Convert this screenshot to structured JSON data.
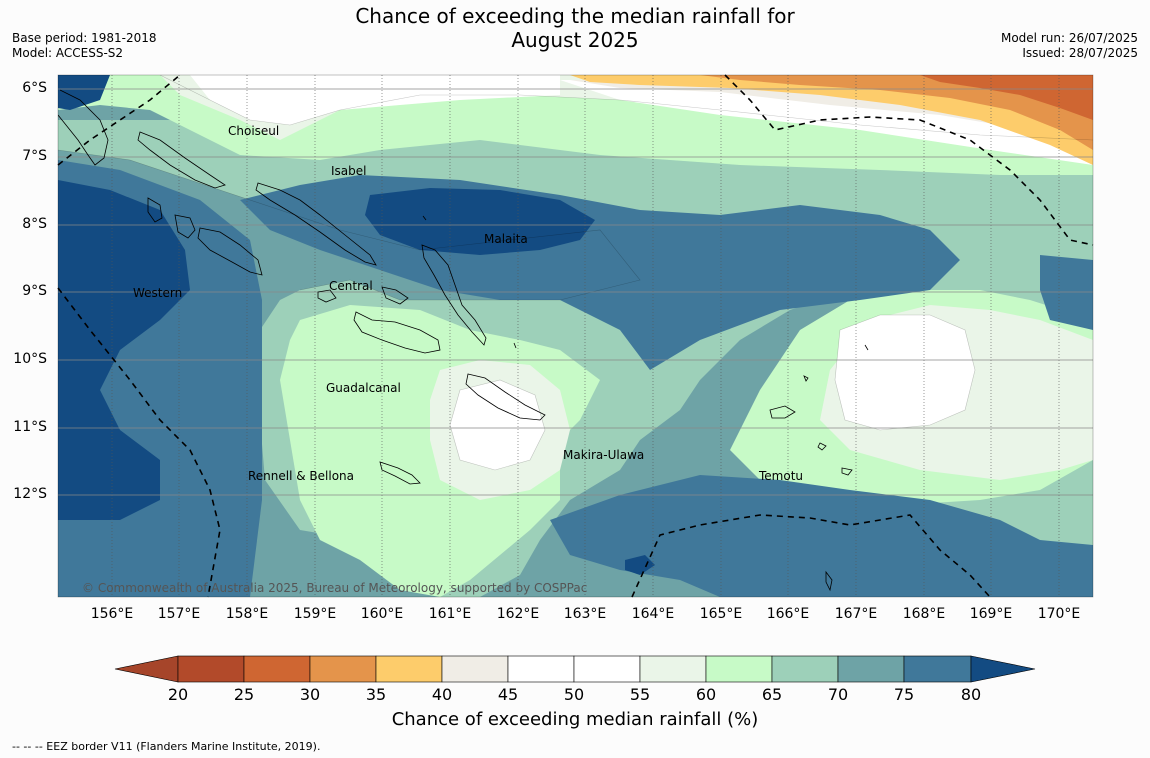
{
  "title": {
    "line1": "Chance of exceeding the median rainfall for",
    "line2": "August 2025"
  },
  "meta": {
    "base_period": "Base period: 1981-2018",
    "model": "Model: ACCESS-S2",
    "model_run": "Model run: 26/07/2025",
    "issued": "Issued: 28/07/2025"
  },
  "map": {
    "latitudes": [
      "6°S",
      "7°S",
      "8°S",
      "9°S",
      "10°S",
      "11°S",
      "12°S"
    ],
    "longitudes": [
      "156°E",
      "157°E",
      "158°E",
      "159°E",
      "160°E",
      "161°E",
      "162°E",
      "163°E",
      "164°E",
      "165°E",
      "166°E",
      "167°E",
      "168°E",
      "169°E",
      "170°E"
    ],
    "provinces": [
      "Choiseul",
      "Isabel",
      "Malaita",
      "Western",
      "Central",
      "Guadalcanal",
      "Makira-Ulawa",
      "Temotu",
      "Rennell & Bellona"
    ],
    "copyright": "© Commonwealth of Australia 2025, Bureau of Meteorology, supported by COSPPac"
  },
  "colorbar": {
    "ticks": [
      "20",
      "25",
      "30",
      "35",
      "40",
      "45",
      "50",
      "55",
      "60",
      "65",
      "70",
      "75",
      "80"
    ],
    "colors": [
      "#b24a2a",
      "#cf6632",
      "#e4944b",
      "#fdcc6b",
      "#f0ede6",
      "#ffffff",
      "#ffffff",
      "#eaf5e8",
      "#c7fac7",
      "#9dd0b9",
      "#6ea3a6",
      "#40789a"
    ],
    "below_color": "#a6452a",
    "above_color": "#134b82",
    "title": "Chance of exceeding median rainfall (%)"
  },
  "footer": {
    "eez_note": "--  --  -- EEZ border V11 (Flanders Marine Institute, 2019)."
  }
}
